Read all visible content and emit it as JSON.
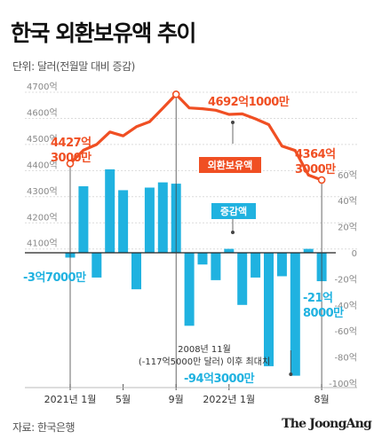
{
  "title": "한국 외환보유액 추이",
  "unit_note": "단위: 달러(전월말 대비 증감)",
  "source": "자료: 한국은행",
  "brand": "The JoongAng",
  "chart_data": {
    "type": "bar+line",
    "x_tick_labels": [
      {
        "index": 0,
        "label": "2021년 1월"
      },
      {
        "index": 4,
        "label": "5월"
      },
      {
        "index": 8,
        "label": "9월"
      },
      {
        "index": 12,
        "label": "2022년 1월"
      },
      {
        "index": 19,
        "label": "8월"
      }
    ],
    "left_axis": {
      "ticks": [
        "4100억",
        "4200억",
        "4300억",
        "4400억",
        "4500억",
        "4600억",
        "4700억"
      ],
      "range": [
        4050,
        4720
      ]
    },
    "right_axis": {
      "ticks": [
        "60억",
        "40억",
        "20억",
        "0",
        "-20억",
        "-40억",
        "-60억",
        "-80억",
        "-100억"
      ],
      "range": [
        -100,
        70
      ]
    },
    "series": [
      {
        "name": "외환보유액",
        "type": "line",
        "axis": "left",
        "color": "#f04f23",
        "values": [
          4427,
          4478,
          4500,
          4548,
          4533,
          4568,
          4587,
          4639,
          4692,
          4640,
          4637,
          4631,
          4615,
          4617,
          4598,
          4576,
          4494,
          4477,
          4383,
          4364
        ]
      },
      {
        "name": "증감액",
        "type": "bar",
        "axis": "right",
        "color": "#20b2e0",
        "values": [
          -3.7,
          51,
          -19,
          64,
          48,
          -28,
          50,
          54,
          53,
          -56,
          -9,
          -21,
          3,
          -40,
          -19,
          -87,
          -18,
          -94.3,
          3,
          -21.8
        ]
      }
    ],
    "annotations": {
      "first_value": "4427억\n3000만",
      "peak": "4692억1000만",
      "last_value": "4364억\n3000만",
      "first_change": "-3억7000만",
      "min_change": "-94억3000만",
      "min_note": "2008년 11월\n(-117억5000만 달러) 이후 최대치",
      "last_change": "-21억\n8000만",
      "line_legend": "외환보유액",
      "bar_legend": "증감액"
    }
  }
}
